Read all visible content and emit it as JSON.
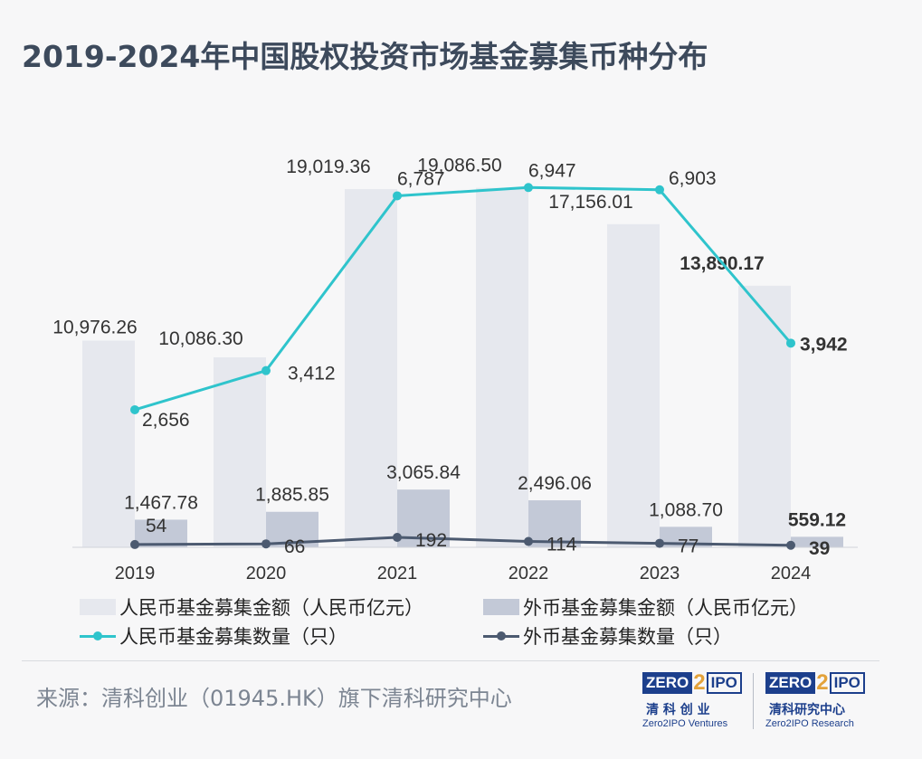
{
  "title": "2019-2024年中国股权投资市场基金募集币种分布",
  "chart_data": {
    "type": "bar",
    "categories": [
      "2019",
      "2020",
      "2021",
      "2022",
      "2023",
      "2024"
    ],
    "series": [
      {
        "name": "人民币基金募集金额（人民币亿元）",
        "kind": "bar",
        "axis": "amount",
        "color": "#e6e8ee",
        "values": [
          10976.26,
          10086.3,
          19019.36,
          19086.5,
          17156.01,
          13890.17
        ],
        "labels": [
          "10,976.26",
          "10,086.30",
          "19,019.36",
          "19,086.50",
          "17,156.01",
          "13,890.17"
        ]
      },
      {
        "name": "外币基金募集金额（人民币亿元）",
        "kind": "bar",
        "axis": "amount",
        "color": "#c3c9d7",
        "values": [
          1467.78,
          1885.85,
          3065.84,
          2496.06,
          1088.7,
          559.12
        ],
        "labels": [
          "1,467.78",
          "1,885.85",
          "3,065.84",
          "2,496.06",
          "1,088.70",
          "559.12"
        ]
      },
      {
        "name": "人民币基金募集数量（只）",
        "kind": "line",
        "axis": "count",
        "color": "#2fc4cc",
        "values": [
          2656,
          3412,
          6787,
          6947,
          6903,
          3942
        ],
        "labels": [
          "2,656",
          "3,412",
          "6,787",
          "6,947",
          "6,903",
          "3,942"
        ]
      },
      {
        "name": "外币基金募集数量（只）",
        "kind": "line",
        "axis": "count",
        "color": "#4c5a70",
        "values": [
          54,
          66,
          192,
          114,
          77,
          39
        ],
        "labels": [
          "54",
          "66",
          "192",
          "114",
          "77",
          "39"
        ]
      }
    ],
    "ylim_amount": [
      0,
      22000
    ],
    "ylim_count": [
      0,
      8000
    ],
    "grid": false,
    "legend_position": "bottom",
    "highlight_category": "2024"
  },
  "legend": {
    "rmb_amount": "人民币基金募集金额（人民币亿元）",
    "fx_amount": "外币基金募集金额（人民币亿元）",
    "rmb_count": "人民币基金募集数量（只）",
    "fx_count": "外币基金募集数量（只）"
  },
  "source": "来源：清科创业（01945.HK）旗下清科研究中心",
  "logos": [
    {
      "mark_left": "ZERO",
      "mark_mid": "2",
      "mark_right": "IPO",
      "cn": "清 科 创 业",
      "en": "Zero2IPO Ventures"
    },
    {
      "mark_left": "ZERO",
      "mark_mid": "2",
      "mark_right": "IPO",
      "cn": "清科研究中心",
      "en": "Zero2IPO Research"
    }
  ]
}
